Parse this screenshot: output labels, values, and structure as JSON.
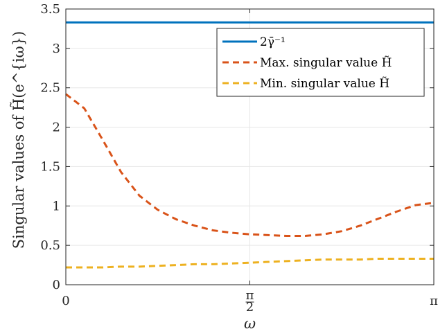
{
  "chart_data": {
    "type": "line",
    "xlabel": "ω",
    "ylabel": "Singular values of H̃(e^{iω})",
    "xlim": [
      0,
      3.14159265
    ],
    "ylim": [
      0,
      3.5
    ],
    "grid": true,
    "legend_position": "top-right",
    "x_ticks": [
      {
        "value": 0,
        "label": "0"
      },
      {
        "value": 1.5708,
        "label": "π/2"
      },
      {
        "value": 3.14159265,
        "label": "π"
      }
    ],
    "y_ticks": [
      {
        "value": 0,
        "label": "0"
      },
      {
        "value": 0.5,
        "label": "0.5"
      },
      {
        "value": 1,
        "label": "1"
      },
      {
        "value": 1.5,
        "label": "1.5"
      },
      {
        "value": 2,
        "label": "2"
      },
      {
        "value": 2.5,
        "label": "2.5"
      },
      {
        "value": 3,
        "label": "3"
      },
      {
        "value": 3.5,
        "label": "3.5"
      }
    ],
    "x": [
      0,
      0.1571,
      0.3142,
      0.4712,
      0.6283,
      0.7854,
      0.9425,
      1.0996,
      1.2566,
      1.4137,
      1.5708,
      1.7279,
      1.885,
      2.042,
      2.1991,
      2.3562,
      2.5133,
      2.6704,
      2.8274,
      2.9845,
      3.1416
    ],
    "series": [
      {
        "name": "2γ̄⁻¹",
        "color": "#0072BD",
        "dash": "solid",
        "values": [
          3.33,
          3.33,
          3.33,
          3.33,
          3.33,
          3.33,
          3.33,
          3.33,
          3.33,
          3.33,
          3.33,
          3.33,
          3.33,
          3.33,
          3.33,
          3.33,
          3.33,
          3.33,
          3.33,
          3.33,
          3.33
        ]
      },
      {
        "name": "Max. singular value H̃",
        "color": "#D95319",
        "dash": "dashed",
        "values": [
          2.42,
          2.24,
          1.84,
          1.43,
          1.13,
          0.95,
          0.83,
          0.75,
          0.69,
          0.66,
          0.64,
          0.63,
          0.62,
          0.62,
          0.64,
          0.68,
          0.75,
          0.84,
          0.93,
          1.01,
          1.04
        ]
      },
      {
        "name": "Min. singular value H̃",
        "color": "#EDB120",
        "dash": "dashed",
        "values": [
          0.22,
          0.22,
          0.22,
          0.23,
          0.23,
          0.24,
          0.25,
          0.26,
          0.26,
          0.27,
          0.28,
          0.29,
          0.3,
          0.31,
          0.32,
          0.32,
          0.32,
          0.33,
          0.33,
          0.33,
          0.33
        ]
      }
    ]
  }
}
